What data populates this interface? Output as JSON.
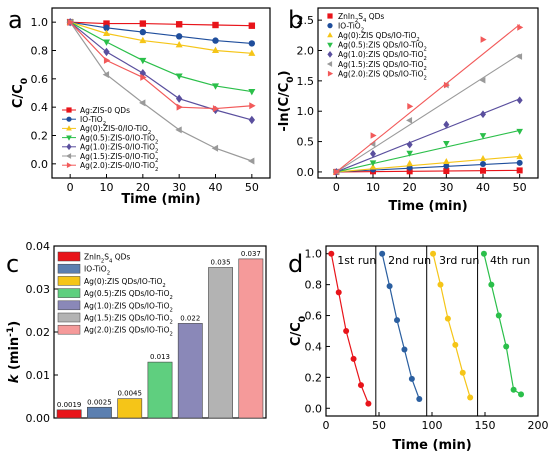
{
  "chart_data": [
    {
      "panel": "a",
      "type": "line",
      "xlabel": "Time (min)",
      "ylabel": "C/C0",
      "xlim": [
        -5,
        55
      ],
      "ylim": [
        -0.1,
        1.1
      ],
      "xticks": [
        0,
        10,
        20,
        30,
        40,
        50
      ],
      "yticks": [
        0.0,
        0.2,
        0.4,
        0.6,
        0.8,
        1.0
      ],
      "legend_position": "bottom-left",
      "x": [
        0,
        10,
        20,
        30,
        40,
        50
      ],
      "series": [
        {
          "name": "Ag:ZIS-0 QDs",
          "color": "#e8141a",
          "marker": "square",
          "values": [
            1.0,
            0.99,
            0.99,
            0.985,
            0.98,
            0.975
          ]
        },
        {
          "name": "IO-TiO2",
          "color": "#1f4e9c",
          "marker": "circle",
          "values": [
            1.0,
            0.96,
            0.93,
            0.9,
            0.87,
            0.85
          ]
        },
        {
          "name": "Ag(0):ZIS-0/IO-TiO2",
          "color": "#f5c518",
          "marker": "triangle-up",
          "values": [
            1.0,
            0.92,
            0.87,
            0.84,
            0.8,
            0.78
          ]
        },
        {
          "name": "Ag(0.5):ZIS-0/IO-TiO2",
          "color": "#2bbf4a",
          "marker": "triangle-down",
          "values": [
            1.0,
            0.86,
            0.73,
            0.62,
            0.55,
            0.51
          ]
        },
        {
          "name": "Ag(1.0):ZIS-0/IO-TiO2",
          "color": "#5a4f9e",
          "marker": "diamond",
          "values": [
            1.0,
            0.79,
            0.64,
            0.46,
            0.38,
            0.31
          ]
        },
        {
          "name": "Ag(1.5):ZIS-0/IO-TiO2",
          "color": "#9a9a9a",
          "marker": "triangle-left",
          "values": [
            1.0,
            0.63,
            0.43,
            0.24,
            0.11,
            0.02
          ]
        },
        {
          "name": "Ag(2.0):ZIS-0/IO-TiO2",
          "color": "#f25a5a",
          "marker": "triangle-right",
          "values": [
            1.0,
            0.73,
            0.61,
            0.4,
            0.39,
            0.41
          ]
        }
      ]
    },
    {
      "panel": "b",
      "type": "scatter",
      "xlabel": "Time (min)",
      "ylabel": "-ln(C/C0)",
      "xlim": [
        -5,
        55
      ],
      "ylim": [
        -0.1,
        2.7
      ],
      "xticks": [
        0,
        10,
        20,
        30,
        40,
        50
      ],
      "yticks": [
        0.0,
        0.5,
        1.0,
        1.5,
        2.0,
        2.5
      ],
      "legend_position": "top-left",
      "x": [
        0,
        10,
        20,
        30,
        40,
        50
      ],
      "series": [
        {
          "name": "ZnIn2S4 QDs",
          "color": "#e8141a",
          "marker": "square",
          "values": [
            0.0,
            0.01,
            0.01,
            0.015,
            0.02,
            0.025
          ],
          "fit": [
            0.0,
            0.0019
          ]
        },
        {
          "name": "IO-TiO2",
          "color": "#1f4e9c",
          "marker": "circle",
          "values": [
            0.0,
            0.04,
            0.07,
            0.1,
            0.13,
            0.15
          ],
          "fit": [
            0.0,
            0.0025
          ]
        },
        {
          "name": "Ag(0):ZIS QDs/IO-TiO2",
          "color": "#f5c518",
          "marker": "triangle-up",
          "values": [
            0.0,
            0.08,
            0.14,
            0.17,
            0.22,
            0.25
          ],
          "fit": [
            0.0,
            0.0045
          ]
        },
        {
          "name": "Ag(0.5):ZIS QDs/IO-TiO2",
          "color": "#2bbf4a",
          "marker": "triangle-down",
          "values": [
            0.0,
            0.15,
            0.31,
            0.47,
            0.6,
            0.67
          ],
          "fit": [
            0.0,
            0.013
          ]
        },
        {
          "name": "Ag(1.0):ZIS QDs/IO-TiO2",
          "color": "#5a4f9e",
          "marker": "diamond",
          "values": [
            0.0,
            0.3,
            0.45,
            0.78,
            0.95,
            1.18
          ],
          "fit": [
            0.0,
            0.022
          ]
        },
        {
          "name": "Ag(1.5):ZIS QDs/IO-TiO2",
          "color": "#9a9a9a",
          "marker": "triangle-left",
          "values": [
            0.0,
            0.46,
            0.85,
            1.43,
            1.51,
            1.9
          ],
          "fit": [
            0.0,
            0.035
          ]
        },
        {
          "name": "Ag(2.0):ZIS QDs/IO-TiO2",
          "color": "#f25a5a",
          "marker": "triangle-right",
          "values": [
            0.0,
            0.6,
            1.08,
            1.43,
            2.18,
            2.38
          ],
          "fit": [
            0.0,
            0.037
          ]
        }
      ]
    },
    {
      "panel": "c",
      "type": "bar",
      "ylabel": "k (min-1)",
      "ylim": [
        0,
        0.04
      ],
      "yticks": [
        0.0,
        0.01,
        0.02,
        0.03,
        0.04
      ],
      "legend_position": "top-left",
      "categories": [
        "ZnIn2S4 QDs",
        "IO-TiO2",
        "Ag(0):ZIS QDs/IO-TiO2",
        "Ag(0.5):ZIS QDs/IO-TiO2",
        "Ag(1.0):ZIS QDs/IO-TiO2",
        "Ag(1.5):ZIS QDs/IO-TiO2",
        "Ag(2.0):ZIS QDs/IO-TiO2"
      ],
      "values": [
        0.0019,
        0.0025,
        0.0045,
        0.013,
        0.022,
        0.035,
        0.037
      ],
      "value_labels": [
        "0.0019",
        "0.0025",
        "0.0045",
        "0.013",
        "0.022",
        "0.035",
        "0.037"
      ],
      "colors": [
        "#e8141a",
        "#5b7fb0",
        "#f5c518",
        "#5fcf7f",
        "#8a88b8",
        "#b3b3b3",
        "#f59a9a"
      ]
    },
    {
      "panel": "d",
      "type": "line",
      "xlabel": "Time (min)",
      "ylabel": "C/C0",
      "xlim": [
        0,
        200
      ],
      "ylim": [
        -0.05,
        1.05
      ],
      "xticks": [
        0,
        50,
        100,
        150,
        200
      ],
      "yticks": [
        0.0,
        0.2,
        0.4,
        0.6,
        0.8,
        1.0
      ],
      "dividers": [
        47,
        95,
        143
      ],
      "series": [
        {
          "name": "1st run",
          "color": "#e8141a",
          "x": [
            5,
            12,
            19,
            26,
            33,
            40
          ],
          "values": [
            1.0,
            0.75,
            0.5,
            0.32,
            0.15,
            0.03
          ]
        },
        {
          "name": "2nd run",
          "color": "#2b5fa0",
          "x": [
            53,
            60,
            67,
            74,
            81,
            88
          ],
          "values": [
            1.0,
            0.79,
            0.57,
            0.38,
            0.19,
            0.06
          ]
        },
        {
          "name": "3rd run",
          "color": "#f5c518",
          "x": [
            101,
            108,
            115,
            122,
            129,
            136
          ],
          "values": [
            1.0,
            0.8,
            0.58,
            0.41,
            0.23,
            0.07
          ]
        },
        {
          "name": "4th run",
          "color": "#2bbf4a",
          "x": [
            149,
            156,
            163,
            170,
            177,
            184
          ],
          "values": [
            1.0,
            0.8,
            0.6,
            0.4,
            0.12,
            0.09
          ]
        }
      ]
    }
  ],
  "panel_labels": [
    "a",
    "b",
    "c",
    "d"
  ]
}
